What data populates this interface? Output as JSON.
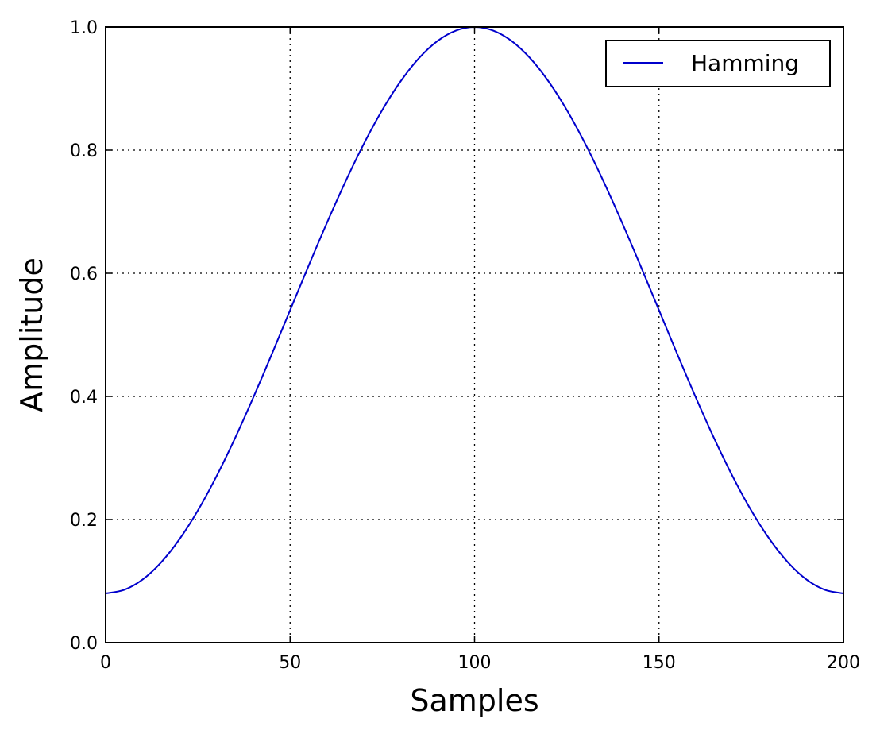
{
  "chart_data": {
    "type": "line",
    "title": "",
    "xlabel": "Samples",
    "ylabel": "Amplitude",
    "xlim": [
      0,
      200
    ],
    "ylim": [
      0.0,
      1.0
    ],
    "xticks": [
      0,
      50,
      100,
      150,
      200
    ],
    "xtick_labels": [
      "0",
      "50",
      "100",
      "150",
      "200"
    ],
    "yticks": [
      0.0,
      0.2,
      0.4,
      0.6,
      0.8,
      1.0
    ],
    "ytick_labels": [
      "0.0",
      "0.2",
      "0.4",
      "0.6",
      "0.8",
      "1.0"
    ],
    "grid": true,
    "legend_position": "top-right",
    "series": [
      {
        "name": "Hamming",
        "color": "#0000cc",
        "x": [
          0,
          5,
          10,
          15,
          20,
          25,
          30,
          35,
          40,
          45,
          50,
          55,
          60,
          65,
          70,
          75,
          80,
          85,
          90,
          95,
          100,
          105,
          110,
          115,
          120,
          125,
          130,
          135,
          140,
          145,
          150,
          155,
          160,
          165,
          170,
          175,
          180,
          185,
          190,
          195,
          200
        ],
        "y": [
          0.08,
          0.0857,
          0.1025,
          0.1301,
          0.1679,
          0.2147,
          0.2696,
          0.3312,
          0.3979,
          0.468,
          0.54,
          0.612,
          0.6821,
          0.7488,
          0.8104,
          0.8653,
          0.9121,
          0.9499,
          0.9775,
          0.9943,
          1.0,
          0.9943,
          0.9775,
          0.9499,
          0.9121,
          0.8653,
          0.8104,
          0.7488,
          0.6821,
          0.612,
          0.54,
          0.468,
          0.3979,
          0.3312,
          0.2696,
          0.2147,
          0.1679,
          0.1301,
          0.1025,
          0.0857,
          0.08
        ]
      }
    ]
  }
}
